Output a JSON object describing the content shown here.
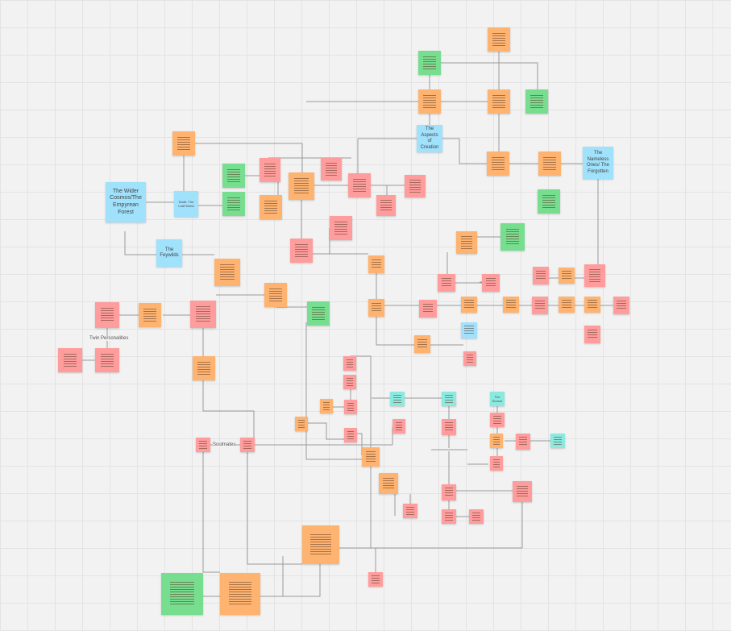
{
  "colors": {
    "orange": "#ffb370",
    "pink": "#ff9d9d",
    "green": "#77dd8f",
    "blue": "#a0e1fc",
    "teal": "#8beae0",
    "canvas": "#f2f2f2"
  },
  "notes": {
    "wider_cosmos": "The Wider Cosmos/The Empyrean Forest",
    "earth": "Earth: The Leaf World",
    "feywilds": "The Feywilds",
    "aspects": "The Aspects of Creation",
    "nameless": "The Nameless Ones/ The Forgotten",
    "source": "The Source"
  },
  "labels": {
    "twin": "Twin Personalities",
    "soulmates": "Soulmates"
  }
}
